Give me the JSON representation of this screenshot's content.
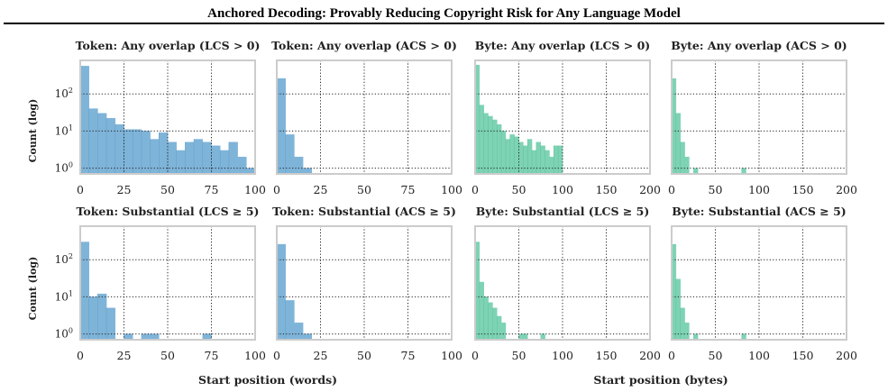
{
  "paper": {
    "title": "Anchored Decoding: Provably Reducing Copyright Risk for Any Language Model"
  },
  "figure": {
    "ylabel": "Count (log)",
    "xlabel_words": "Start position (words)",
    "xlabel_bytes": "Start position (bytes)"
  },
  "colors": {
    "token": "#7fb4d9",
    "byte": "#7dd3b4",
    "frame": "#cccccc"
  },
  "chart_data": [
    {
      "type": "bar",
      "title": "Token: Any overlap (LCS > 0)",
      "unit": "words",
      "color": "token",
      "yscale": "log",
      "grid": true,
      "xlim": [
        0,
        100
      ],
      "xticks": [
        0,
        25,
        50,
        75,
        100
      ],
      "ylim": [
        0.7,
        800
      ],
      "yticks": [
        1,
        10,
        100
      ],
      "ytick_labels": [
        "10^0",
        "10^1",
        "10^2"
      ],
      "bin_width": 5,
      "bins": [
        [
          0,
          560
        ],
        [
          5,
          40
        ],
        [
          10,
          30
        ],
        [
          15,
          22
        ],
        [
          20,
          15
        ],
        [
          25,
          11
        ],
        [
          30,
          11
        ],
        [
          35,
          10
        ],
        [
          40,
          6
        ],
        [
          45,
          9
        ],
        [
          50,
          5
        ],
        [
          55,
          3
        ],
        [
          60,
          5
        ],
        [
          65,
          6
        ],
        [
          70,
          5
        ],
        [
          75,
          4
        ],
        [
          80,
          3
        ],
        [
          85,
          5
        ],
        [
          90,
          2
        ],
        [
          95,
          1
        ]
      ]
    },
    {
      "type": "bar",
      "title": "Token: Any overlap (ACS > 0)",
      "unit": "words",
      "color": "token",
      "yscale": "log",
      "grid": true,
      "xlim": [
        0,
        100
      ],
      "xticks": [
        0,
        25,
        50,
        75,
        100
      ],
      "ylim": [
        0.7,
        800
      ],
      "yticks": [
        1,
        10,
        100
      ],
      "ytick_labels": [
        "10^0",
        "10^1",
        "10^2"
      ],
      "bin_width": 5,
      "bins": [
        [
          0,
          260
        ],
        [
          5,
          8
        ],
        [
          10,
          2
        ],
        [
          15,
          1
        ]
      ]
    },
    {
      "type": "bar",
      "title": "Byte: Any overlap (LCS > 0)",
      "unit": "bytes",
      "color": "byte",
      "yscale": "log",
      "grid": true,
      "xlim": [
        0,
        200
      ],
      "xticks": [
        0,
        50,
        100,
        150,
        200
      ],
      "ylim": [
        0.7,
        800
      ],
      "yticks": [
        1,
        10,
        100
      ],
      "ytick_labels": [
        "10^0",
        "10^1",
        "10^2"
      ],
      "bin_width": 5,
      "bins": [
        [
          0,
          600
        ],
        [
          5,
          50
        ],
        [
          10,
          30
        ],
        [
          15,
          25
        ],
        [
          20,
          20
        ],
        [
          25,
          15
        ],
        [
          30,
          10
        ],
        [
          35,
          6
        ],
        [
          40,
          8
        ],
        [
          45,
          7
        ],
        [
          50,
          5
        ],
        [
          55,
          4
        ],
        [
          60,
          6
        ],
        [
          65,
          3
        ],
        [
          70,
          5
        ],
        [
          75,
          4
        ],
        [
          80,
          3
        ],
        [
          85,
          2
        ],
        [
          90,
          4
        ],
        [
          95,
          4
        ]
      ]
    },
    {
      "type": "bar",
      "title": "Byte: Any overlap (ACS > 0)",
      "unit": "bytes",
      "color": "byte",
      "yscale": "log",
      "grid": true,
      "xlim": [
        0,
        200
      ],
      "xticks": [
        0,
        50,
        100,
        150,
        200
      ],
      "ylim": [
        0.7,
        800
      ],
      "yticks": [
        1,
        10,
        100
      ],
      "ytick_labels": [
        "10^0",
        "10^1",
        "10^2"
      ],
      "bin_width": 5,
      "bins": [
        [
          0,
          260
        ],
        [
          5,
          30
        ],
        [
          10,
          5
        ],
        [
          15,
          2
        ],
        [
          25,
          1
        ],
        [
          80,
          1
        ]
      ]
    },
    {
      "type": "bar",
      "title": "Token: Substantial (LCS ≥ 5)",
      "unit": "words",
      "color": "token",
      "yscale": "log",
      "grid": true,
      "xlim": [
        0,
        100
      ],
      "xticks": [
        0,
        25,
        50,
        75,
        100
      ],
      "ylim": [
        0.7,
        800
      ],
      "yticks": [
        1,
        10,
        100
      ],
      "ytick_labels": [
        "10^0",
        "10^1",
        "10^2"
      ],
      "bin_width": 5,
      "bins": [
        [
          0,
          300
        ],
        [
          5,
          10
        ],
        [
          10,
          12
        ],
        [
          15,
          5
        ],
        [
          25,
          1
        ],
        [
          35,
          1
        ],
        [
          40,
          1
        ],
        [
          70,
          1
        ]
      ]
    },
    {
      "type": "bar",
      "title": "Token: Substantial (ACS ≥ 5)",
      "unit": "words",
      "color": "token",
      "yscale": "log",
      "grid": true,
      "xlim": [
        0,
        100
      ],
      "xticks": [
        0,
        25,
        50,
        75,
        100
      ],
      "ylim": [
        0.7,
        800
      ],
      "yticks": [
        1,
        10,
        100
      ],
      "ytick_labels": [
        "10^0",
        "10^1",
        "10^2"
      ],
      "bin_width": 5,
      "bins": [
        [
          0,
          260
        ],
        [
          5,
          8
        ],
        [
          10,
          2
        ],
        [
          15,
          1
        ]
      ]
    },
    {
      "type": "bar",
      "title": "Byte: Substantial (LCS ≥ 5)",
      "unit": "bytes",
      "color": "byte",
      "yscale": "log",
      "grid": true,
      "xlim": [
        0,
        200
      ],
      "xticks": [
        0,
        50,
        100,
        150,
        200
      ],
      "ylim": [
        0.7,
        800
      ],
      "yticks": [
        1,
        10,
        100
      ],
      "ytick_labels": [
        "10^0",
        "10^1",
        "10^2"
      ],
      "bin_width": 5,
      "bins": [
        [
          0,
          300
        ],
        [
          5,
          25
        ],
        [
          10,
          10
        ],
        [
          15,
          7
        ],
        [
          20,
          5
        ],
        [
          25,
          3
        ],
        [
          30,
          2
        ],
        [
          50,
          1
        ],
        [
          55,
          1
        ],
        [
          75,
          1
        ]
      ]
    },
    {
      "type": "bar",
      "title": "Byte: Substantial (ACS ≥ 5)",
      "unit": "bytes",
      "color": "byte",
      "yscale": "log",
      "grid": true,
      "xlim": [
        0,
        200
      ],
      "xticks": [
        0,
        50,
        100,
        150,
        200
      ],
      "ylim": [
        0.7,
        800
      ],
      "yticks": [
        1,
        10,
        100
      ],
      "ytick_labels": [
        "10^0",
        "10^1",
        "10^2"
      ],
      "bin_width": 5,
      "bins": [
        [
          0,
          260
        ],
        [
          5,
          30
        ],
        [
          10,
          5
        ],
        [
          15,
          2
        ],
        [
          25,
          1
        ],
        [
          80,
          1
        ]
      ]
    }
  ]
}
